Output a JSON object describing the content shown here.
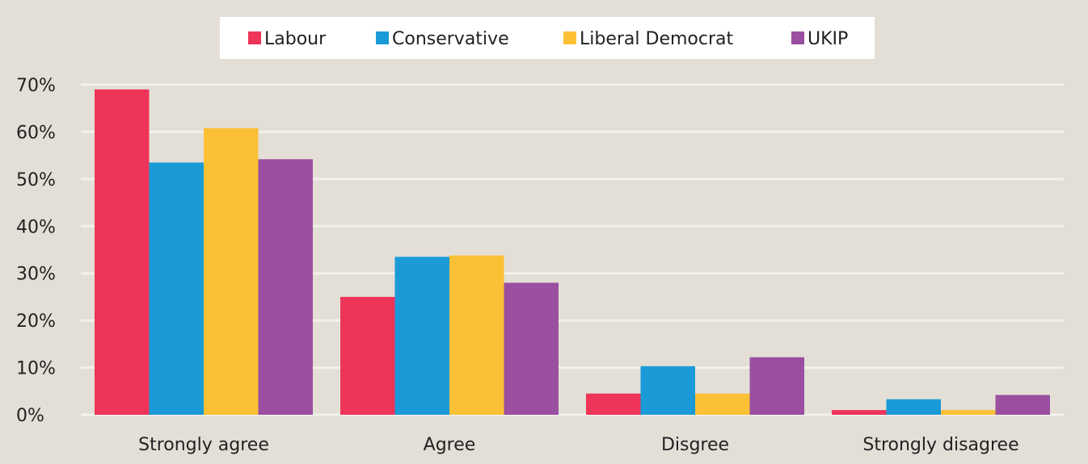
{
  "chart_data": {
    "type": "bar",
    "categories": [
      "Strongly agree",
      "Agree",
      "Disgree",
      "Strongly disagree"
    ],
    "series": [
      {
        "name": "Labour",
        "color": "#ee3458",
        "values": [
          69,
          25,
          4.5,
          1
        ]
      },
      {
        "name": "Conservative",
        "color": "#1a9bd7",
        "values": [
          53.5,
          33.5,
          10.3,
          3.3
        ]
      },
      {
        "name": "Liberal Democrat",
        "color": "#fbc035",
        "values": [
          60.8,
          33.8,
          4.5,
          1
        ]
      },
      {
        "name": "UKIP",
        "color": "#9b4fa0",
        "values": [
          54.2,
          28,
          12.2,
          4.2
        ]
      }
    ],
    "ylim": [
      0,
      70
    ],
    "yticks": [
      "0%",
      "10%",
      "20%",
      "30%",
      "40%",
      "50%",
      "60%",
      "70%"
    ],
    "grid": true,
    "legend_position": "top-center",
    "background_color": "#e3dfd7",
    "grid_color": "#f3f1ec"
  }
}
